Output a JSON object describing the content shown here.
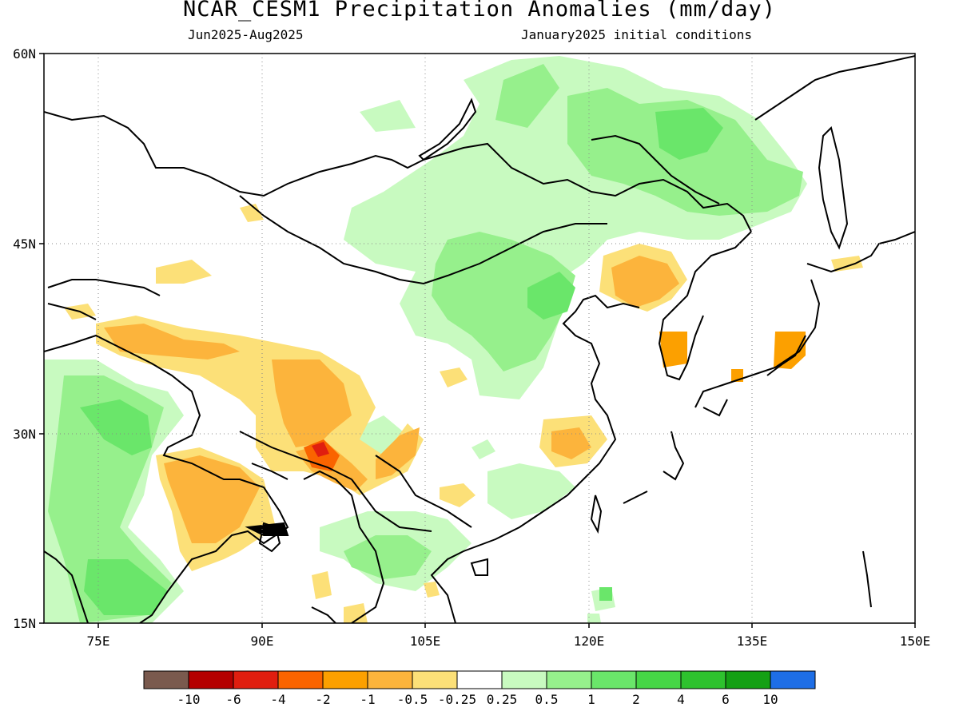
{
  "title": "NCAR_CESM1 Precipitation Anomalies (mm/day)",
  "subtitle_left": "Jun2025-Aug2025",
  "subtitle_right": "January2025 initial conditions",
  "map": {
    "lon_range": [
      70,
      150
    ],
    "lat_range": [
      15,
      60
    ],
    "lon_ticks": [
      "75E",
      "90E",
      "105E",
      "120E",
      "135E",
      "150E"
    ],
    "lat_ticks": [
      "60N",
      "45N",
      "30N",
      "15N"
    ],
    "grid": "dotted"
  },
  "colorbar": {
    "labels": [
      "-10",
      "-6",
      "-4",
      "-2",
      "-1",
      "-0.5",
      "-0.25",
      "0.25",
      "0.5",
      "1",
      "2",
      "4",
      "6",
      "10"
    ],
    "colors": [
      "#7a5a4e",
      "#b40000",
      "#e01e0f",
      "#fa6400",
      "#fca000",
      "#fcb43c",
      "#fce078",
      "#ffffff",
      "#c8fac0",
      "#96f08c",
      "#6ae66a",
      "#46d646",
      "#2ec22e",
      "#14a014",
      "#1e6ee6"
    ]
  },
  "anomaly_regions": [
    {
      "name": "mongolia-north-wet",
      "value": 0.5
    },
    {
      "name": "northeast-china-wet",
      "value": 1
    },
    {
      "name": "inner-mongolia-wet",
      "value": 1
    },
    {
      "name": "india-wet",
      "value": 2
    },
    {
      "name": "tibet-dry",
      "value": -1
    },
    {
      "name": "bangladesh-dry",
      "value": -1
    },
    {
      "name": "korea-dry",
      "value": -2
    },
    {
      "name": "japan-dry",
      "value": -2
    }
  ]
}
